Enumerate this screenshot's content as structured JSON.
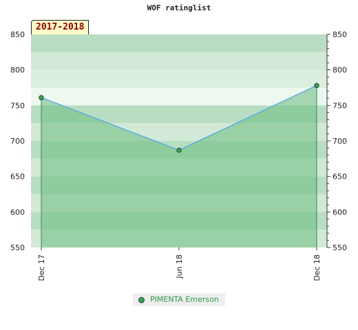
{
  "title": "WOF ratinglist",
  "period_label": "2017-2018",
  "chart_data": {
    "type": "line",
    "title": "WOF ratinglist",
    "categories": [
      "Dec 17",
      "Jun 18",
      "Dec 18"
    ],
    "series": [
      {
        "name": "PIMENTA Emerson",
        "values": [
          761,
          687,
          778
        ]
      }
    ],
    "ylim": [
      550,
      850
    ],
    "yticks": [
      550,
      600,
      650,
      700,
      750,
      800,
      850
    ],
    "grid": true,
    "legend": "bottom-center",
    "colors": {
      "line": "#5aaee0",
      "area": "#6cbc7e",
      "marker": "#3e9e5e",
      "marker_edge": "#1f4d2e",
      "drop_line": "#2f8a4a"
    }
  }
}
